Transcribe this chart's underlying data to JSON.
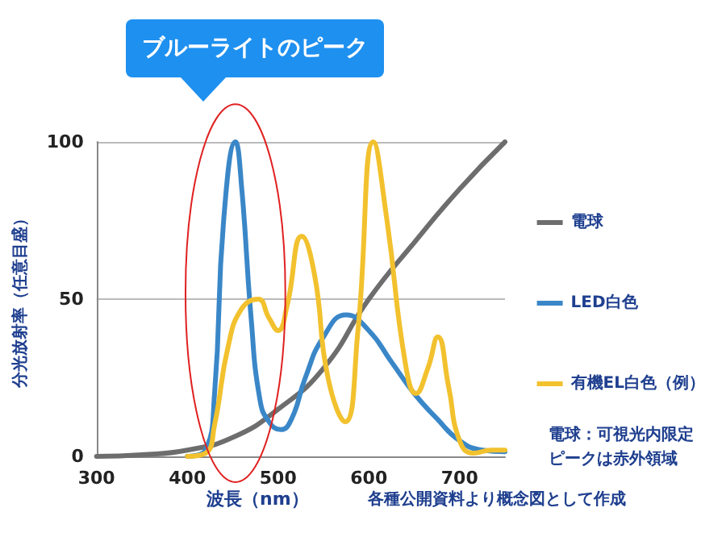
{
  "chart_data": {
    "type": "line",
    "ylabel": "分光放射率（任意目盛）",
    "xlabel": "波長（nm）",
    "xlim": [
      300,
      750
    ],
    "xticks": [
      300,
      400,
      500,
      600,
      700
    ],
    "ylim": [
      0,
      100
    ],
    "yticks": [
      0,
      50,
      100
    ],
    "grid": "y",
    "legend": "right",
    "marker": "none",
    "line_style": "solid",
    "annotations": [
      "ブルーライトのピーク",
      "電球：可視光内限定",
      "ピークは赤外領域",
      "各種公開資料より概念図として作成"
    ],
    "series": [
      {
        "name": "電球",
        "color": "#6d6d6d",
        "x": [
          300,
          350,
          400,
          450,
          500,
          550,
          600,
          650,
          700,
          750
        ],
        "values": [
          0,
          0.5,
          2,
          6,
          15,
          28,
          50,
          68,
          85,
          100
        ]
      },
      {
        "name": "LED白色",
        "color": "#3a87c8",
        "x": [
          400,
          420,
          430,
          440,
          453,
          460,
          470,
          480,
          490,
          503,
          515,
          530,
          550,
          575,
          600,
          625,
          650,
          675,
          700,
          725,
          750
        ],
        "values": [
          0,
          2,
          20,
          75,
          100,
          85,
          45,
          18,
          11,
          8.5,
          12,
          25,
          38,
          45,
          40,
          30,
          20,
          12,
          5,
          2,
          1.5
        ]
      },
      {
        "name": "有機EL白色（例）",
        "color": "#f2c12e",
        "x": [
          400,
          420,
          430,
          445,
          460,
          478,
          490,
          500,
          510,
          526,
          540,
          555,
          574,
          588,
          605,
          620,
          640,
          652,
          665,
          676,
          688,
          700,
          715,
          735,
          750
        ],
        "values": [
          0,
          1,
          10,
          35,
          47,
          50,
          44,
          40,
          48,
          70,
          58,
          25,
          11,
          40,
          100,
          75,
          30,
          20,
          28,
          38,
          22,
          5,
          1,
          2,
          2
        ]
      }
    ]
  }
}
